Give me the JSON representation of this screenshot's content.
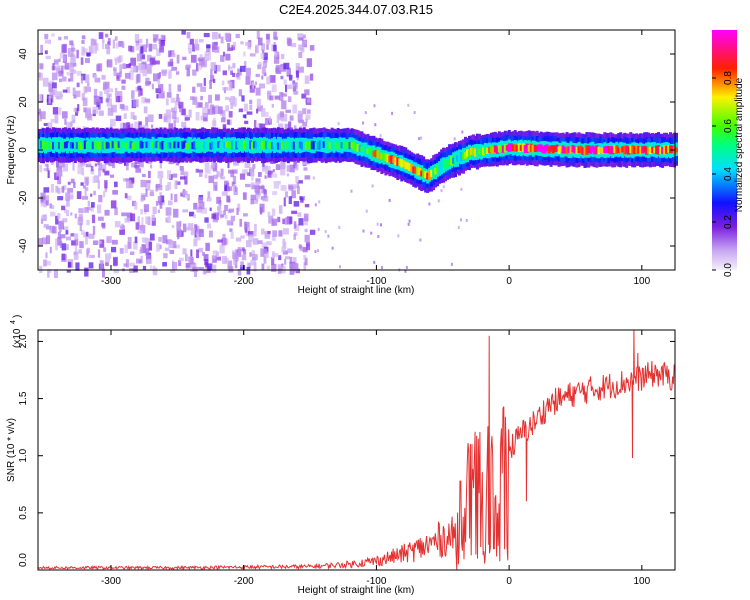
{
  "title": "C2E4.2025.344.07.03.R15",
  "chart_data": [
    {
      "type": "heatmap",
      "title": "C2E4.2025.344.07.03.R15",
      "xlabel": "Height of straight line (km)",
      "ylabel": "Frequency (Hz)",
      "xlim": [
        -355,
        125
      ],
      "ylim": [
        -50,
        50
      ],
      "xticks": [
        -300,
        -200,
        -100,
        0,
        100
      ],
      "yticks": [
        -40,
        -20,
        0,
        20,
        40
      ],
      "colorbar": {
        "label": "Normalized spectral amplitude",
        "range": [
          0.0,
          1.0
        ],
        "ticks": [
          0.0,
          0.2,
          0.4,
          0.6,
          0.8
        ],
        "colormap": [
          "#e8e0f6",
          "#7a1fe0",
          "#1010ff",
          "#00e0ff",
          "#00ff40",
          "#fff000",
          "#ff2000",
          "#ff00ff"
        ]
      },
      "ridge": [
        {
          "x": -355,
          "y": 2,
          "amp": 0.45
        },
        {
          "x": -150,
          "y": 2,
          "amp": 0.45
        },
        {
          "x": -120,
          "y": 2,
          "amp": 0.5
        },
        {
          "x": -100,
          "y": -2,
          "amp": 0.7
        },
        {
          "x": -80,
          "y": -6,
          "amp": 0.75
        },
        {
          "x": -62,
          "y": -11,
          "amp": 0.7
        },
        {
          "x": -50,
          "y": -6,
          "amp": 0.5
        },
        {
          "x": -30,
          "y": -1,
          "amp": 0.6
        },
        {
          "x": 0,
          "y": 1,
          "amp": 0.85
        },
        {
          "x": 50,
          "y": 0,
          "amp": 0.9
        },
        {
          "x": 125,
          "y": 0,
          "amp": 0.8
        }
      ],
      "noise_region_km": [
        -355,
        -150
      ]
    },
    {
      "type": "line",
      "xlabel": "Height of straight line (km)",
      "ylabel": "SNR (10 * v/v)",
      "scale_label": "(x10",
      "scale_exponent": "4",
      "xlim": [
        -355,
        125
      ],
      "ylim": [
        0.0,
        2.1
      ],
      "xticks": [
        -300,
        -200,
        -100,
        0,
        100
      ],
      "yticks": [
        "0.0",
        "0.5",
        "1.0",
        "1.5",
        "2.0"
      ],
      "ytick_values": [
        0.0,
        0.5,
        1.0,
        1.5,
        2.0
      ],
      "series": [
        {
          "name": "SNR",
          "color": "#e53030",
          "x": [
            -355,
            -250,
            -150,
            -120,
            -100,
            -80,
            -60,
            -50,
            -40,
            -35,
            -30,
            -20,
            -10,
            0,
            10,
            20,
            30,
            50,
            70,
            90,
            110,
            125
          ],
          "y": [
            0.02,
            0.02,
            0.03,
            0.05,
            0.08,
            0.14,
            0.22,
            0.28,
            0.3,
            0.55,
            0.7,
            0.85,
            0.9,
            1.05,
            1.2,
            1.3,
            1.45,
            1.55,
            1.6,
            1.65,
            1.72,
            1.68
          ]
        }
      ],
      "spikes": [
        {
          "x": -15,
          "y": 2.05
        },
        {
          "x": -28,
          "y": 1.1
        },
        {
          "x": 13,
          "y": 0.6
        },
        {
          "x": 93,
          "y": 0.98
        },
        {
          "x": 94,
          "y": 2.1
        },
        {
          "x": 97,
          "y": 1.9
        }
      ]
    }
  ]
}
